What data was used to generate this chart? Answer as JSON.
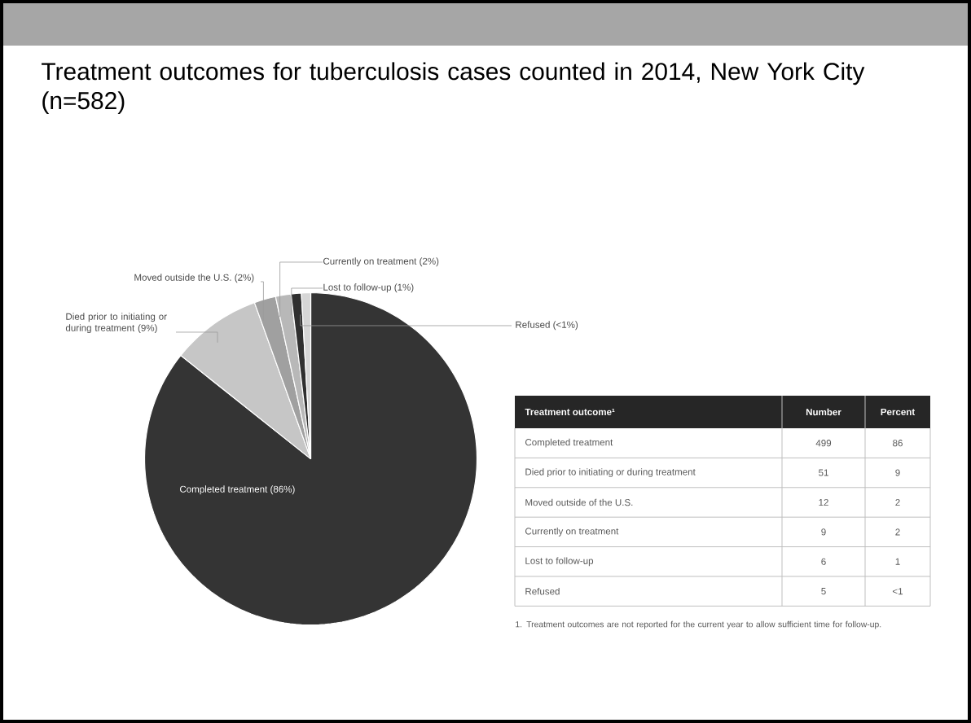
{
  "chart_data": [
    {
      "type": "pie",
      "title": "Treatment outcomes for tuberculosis cases counted in 2014, New York City (n=582)",
      "categories": [
        "Completed treatment (86%)",
        "Died prior to initiating or during treatment (9%)",
        "Moved outside the U.S. (2%)",
        "Currently on treatment (2%)",
        "Lost to follow-up (1%)",
        "Refused (<1%)"
      ],
      "values": [
        85.7,
        8.8,
        2.1,
        1.5,
        1.0,
        0.9
      ],
      "colors": [
        "#343434",
        "#c6c6c6",
        "#a0a0a0",
        "#b8b8b8",
        "#303030",
        "#d6d6d6"
      ]
    },
    {
      "type": "other",
      "title": "Treatment outcome¹",
      "categories": [
        "Completed treatment",
        "Died prior to initiating or during treatment",
        "Moved outside of the U.S.",
        "Currently on treatment",
        "Lost to follow-up",
        "Refused"
      ],
      "series": [
        {
          "name": "Number",
          "values": [
            499,
            51,
            12,
            9,
            6,
            5
          ]
        },
        {
          "name": "Percent",
          "values": [
            86,
            9,
            2,
            2,
            1,
            null
          ]
        }
      ],
      "data_labels": true,
      "annotations": [
        "1. Treatment outcomes are not reported for the current year to allow sufficient time for follow-up.",
        {
          "text": "<1",
          "x": "Refused"
        }
      ]
    }
  ]
}
